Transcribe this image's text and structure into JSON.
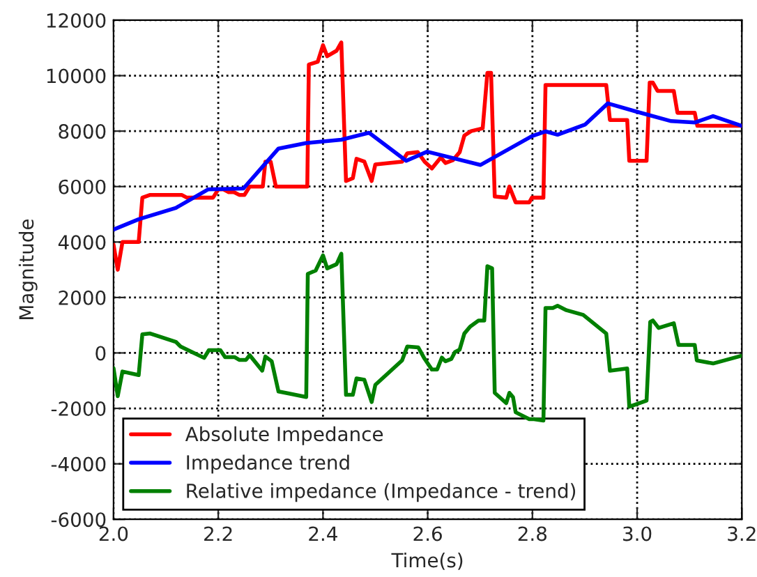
{
  "chart_data": {
    "type": "line",
    "xlabel": "Time(s)",
    "ylabel": "Magnitude",
    "xlim": [
      2.0,
      3.2
    ],
    "ylim": [
      -6000,
      12000
    ],
    "xticks": [
      {
        "value": 2.0,
        "label": "2.0"
      },
      {
        "value": 2.2,
        "label": "2.2"
      },
      {
        "value": 2.4,
        "label": "2.4"
      },
      {
        "value": 2.6,
        "label": "2.6"
      },
      {
        "value": 2.8,
        "label": "2.8"
      },
      {
        "value": 3.0,
        "label": "3.0"
      },
      {
        "value": 3.2,
        "label": "3.2"
      }
    ],
    "yticks": [
      -6000,
      -4000,
      -2000,
      0,
      2000,
      4000,
      6000,
      8000,
      10000,
      12000
    ],
    "grid": true,
    "legend": "bottom left",
    "line_style": "solid",
    "series": [
      {
        "name": "Absolute Impedance",
        "color": "#ff0000",
        "x": [
          2.0,
          2.008,
          2.017,
          2.048,
          2.055,
          2.07,
          2.13,
          2.14,
          2.19,
          2.2,
          2.21,
          2.22,
          2.23,
          2.24,
          2.25,
          2.26,
          2.285,
          2.29,
          2.3,
          2.31,
          2.315,
          2.37,
          2.373,
          2.39,
          2.4,
          2.408,
          2.426,
          2.435,
          2.444,
          2.457,
          2.464,
          2.479,
          2.493,
          2.5,
          2.551,
          2.561,
          2.581,
          2.594,
          2.608,
          2.625,
          2.634,
          2.648,
          2.661,
          2.67,
          2.683,
          2.705,
          2.714,
          2.721,
          2.728,
          2.75,
          2.756,
          2.768,
          2.794,
          2.799,
          2.821,
          2.825,
          2.941,
          2.948,
          2.981,
          2.985,
          3.018,
          3.024,
          3.03,
          3.039,
          3.07,
          3.077,
          3.11,
          3.115,
          3.2
        ],
        "values": [
          3900,
          3000,
          4000,
          4000,
          5600,
          5700,
          5700,
          5600,
          5600,
          5900,
          5900,
          5800,
          5800,
          5700,
          5700,
          6000,
          6000,
          6900,
          6900,
          6000,
          6000,
          6000,
          10400,
          10500,
          11100,
          10700,
          10900,
          11200,
          6200,
          6300,
          7000,
          6900,
          6200,
          6800,
          6900,
          7200,
          7240,
          6900,
          6650,
          7050,
          6850,
          6950,
          7240,
          7840,
          8000,
          8100,
          10100,
          10100,
          5640,
          5600,
          6000,
          5430,
          5430,
          5600,
          5600,
          9660,
          9660,
          8400,
          8400,
          6930,
          6930,
          9750,
          9750,
          9450,
          9450,
          8660,
          8660,
          8190,
          8190
        ]
      },
      {
        "name": "Impedance trend",
        "color": "#0000ff",
        "x": [
          2.0,
          2.048,
          2.119,
          2.181,
          2.248,
          2.315,
          2.368,
          2.435,
          2.488,
          2.559,
          2.599,
          2.701,
          2.799,
          2.825,
          2.848,
          2.901,
          2.944,
          2.999,
          3.065,
          3.11,
          3.145,
          3.2
        ],
        "values": [
          4450,
          4820,
          5230,
          5900,
          5930,
          7370,
          7570,
          7690,
          7940,
          6930,
          7260,
          6780,
          7820,
          7990,
          7870,
          8240,
          9000,
          8700,
          8360,
          8310,
          8540,
          8190
        ]
      },
      {
        "name": "Relative impedance (Impedance - trend)",
        "color": "#008000",
        "x": [
          2.0,
          2.008,
          2.017,
          2.048,
          2.055,
          2.07,
          2.119,
          2.128,
          2.173,
          2.182,
          2.204,
          2.213,
          2.231,
          2.24,
          2.253,
          2.26,
          2.284,
          2.29,
          2.302,
          2.315,
          2.337,
          2.368,
          2.371,
          2.386,
          2.4,
          2.408,
          2.426,
          2.435,
          2.444,
          2.457,
          2.464,
          2.479,
          2.493,
          2.5,
          2.551,
          2.561,
          2.582,
          2.594,
          2.608,
          2.618,
          2.627,
          2.634,
          2.645,
          2.652,
          2.661,
          2.67,
          2.681,
          2.697,
          2.708,
          2.714,
          2.723,
          2.728,
          2.75,
          2.756,
          2.763,
          2.768,
          2.794,
          2.803,
          2.821,
          2.825,
          2.839,
          2.848,
          2.865,
          2.897,
          2.941,
          2.948,
          2.981,
          2.985,
          3.018,
          3.025,
          3.03,
          3.041,
          3.07,
          3.079,
          3.11,
          3.114,
          3.145,
          3.2
        ],
        "values": [
          -550,
          -1560,
          -670,
          -800,
          670,
          700,
          400,
          230,
          -180,
          100,
          100,
          -150,
          -150,
          -250,
          -250,
          -80,
          -640,
          -130,
          -300,
          -1390,
          -1470,
          -1590,
          2850,
          2970,
          3520,
          3050,
          3200,
          3580,
          -1510,
          -1510,
          -920,
          -970,
          -1770,
          -1150,
          -270,
          230,
          200,
          -210,
          -600,
          -600,
          -170,
          -300,
          -220,
          30,
          120,
          700,
          950,
          1170,
          1170,
          3130,
          3050,
          -1440,
          -1810,
          -1440,
          -1600,
          -2140,
          -2390,
          -2390,
          -2440,
          1620,
          1620,
          1700,
          1540,
          1370,
          700,
          -640,
          -560,
          -1940,
          -1720,
          1120,
          1170,
          900,
          1070,
          290,
          290,
          -270,
          -380,
          -100
        ]
      }
    ]
  }
}
